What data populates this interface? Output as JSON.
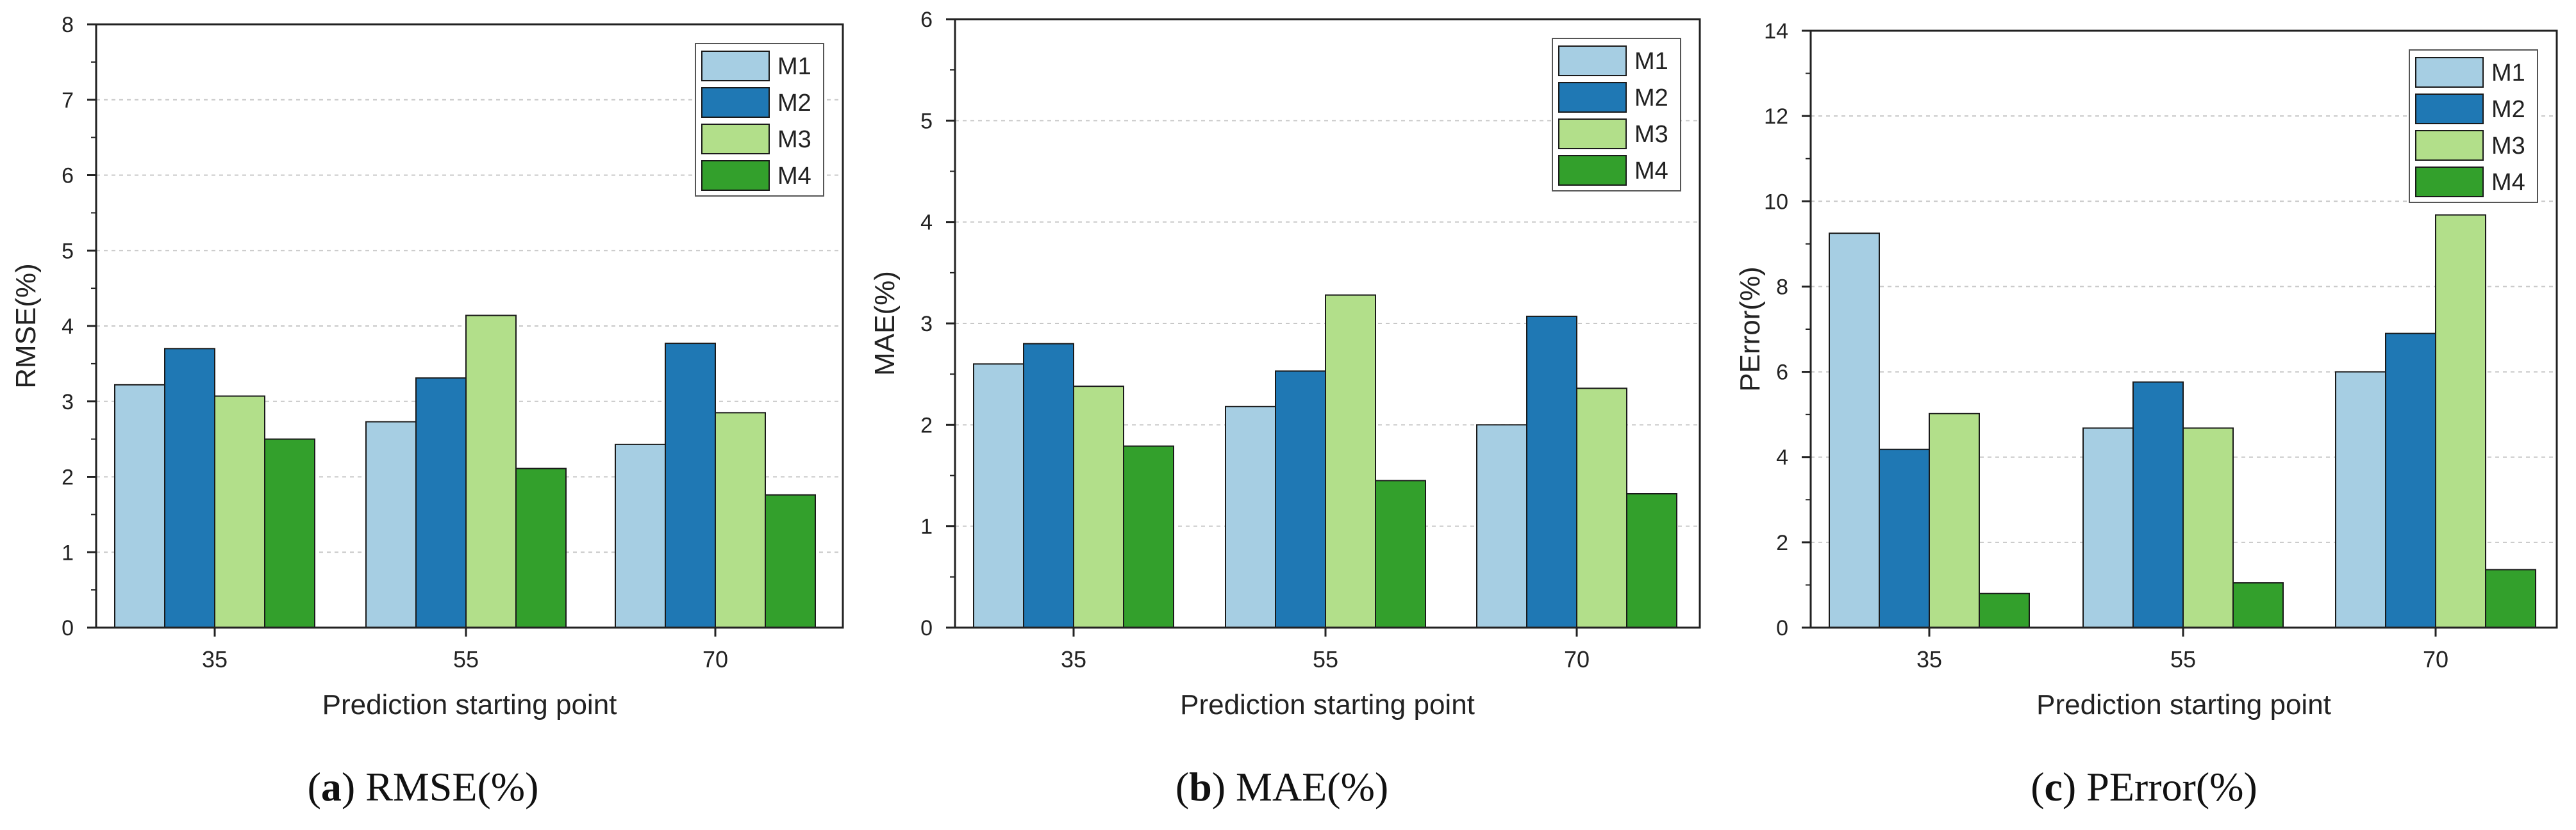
{
  "colors": {
    "M1": "#a6cee3",
    "M2": "#1f78b4",
    "M3": "#b2df8a",
    "M4": "#33a02c",
    "grid": "#c8c8c8",
    "axis": "#222222"
  },
  "chart_data": [
    {
      "type": "bar",
      "title": "",
      "xlabel": "Prediction starting point",
      "ylabel": "RMSE(%)",
      "categories": [
        "35",
        "55",
        "70"
      ],
      "ylim": [
        0,
        8
      ],
      "yticks": [
        "0",
        "1",
        "2",
        "3",
        "4",
        "5",
        "6",
        "7",
        "8"
      ],
      "series": [
        {
          "name": "M1",
          "values": [
            3.22,
            2.73,
            2.43
          ]
        },
        {
          "name": "M2",
          "values": [
            3.7,
            3.31,
            3.77
          ]
        },
        {
          "name": "M3",
          "values": [
            3.07,
            4.14,
            2.85
          ]
        },
        {
          "name": "M4",
          "values": [
            2.5,
            2.11,
            1.76
          ]
        }
      ],
      "legend": "top-right",
      "grid": true,
      "caption": {
        "letter": "a",
        "text": "RMSE(%)"
      }
    },
    {
      "type": "bar",
      "title": "",
      "xlabel": "Prediction starting point",
      "ylabel": "MAE(%)",
      "categories": [
        "35",
        "55",
        "70"
      ],
      "ylim": [
        0,
        6
      ],
      "yticks": [
        "0",
        "1",
        "2",
        "3",
        "4",
        "5",
        "6"
      ],
      "series": [
        {
          "name": "M1",
          "values": [
            2.6,
            2.18,
            2.0
          ]
        },
        {
          "name": "M2",
          "values": [
            2.8,
            2.53,
            3.07
          ]
        },
        {
          "name": "M3",
          "values": [
            2.38,
            3.28,
            2.36
          ]
        },
        {
          "name": "M4",
          "values": [
            1.79,
            1.45,
            1.32
          ]
        }
      ],
      "legend": "top-right",
      "grid": true,
      "caption": {
        "letter": "b",
        "text": "MAE(%)"
      }
    },
    {
      "type": "bar",
      "title": "",
      "xlabel": "Prediction starting point",
      "ylabel": "PError(%)",
      "categories": [
        "35",
        "55",
        "70"
      ],
      "ylim": [
        0,
        14
      ],
      "yticks": [
        "0",
        "2",
        "4",
        "6",
        "8",
        "10",
        "12",
        "14"
      ],
      "series": [
        {
          "name": "M1",
          "values": [
            9.25,
            4.68,
            6.0
          ]
        },
        {
          "name": "M2",
          "values": [
            4.18,
            5.76,
            6.9
          ]
        },
        {
          "name": "M3",
          "values": [
            5.02,
            4.68,
            9.68
          ]
        },
        {
          "name": "M4",
          "values": [
            0.8,
            1.05,
            1.36
          ]
        }
      ],
      "legend": "top-right",
      "grid": true,
      "caption": {
        "letter": "c",
        "text": "PError(%)"
      }
    }
  ]
}
